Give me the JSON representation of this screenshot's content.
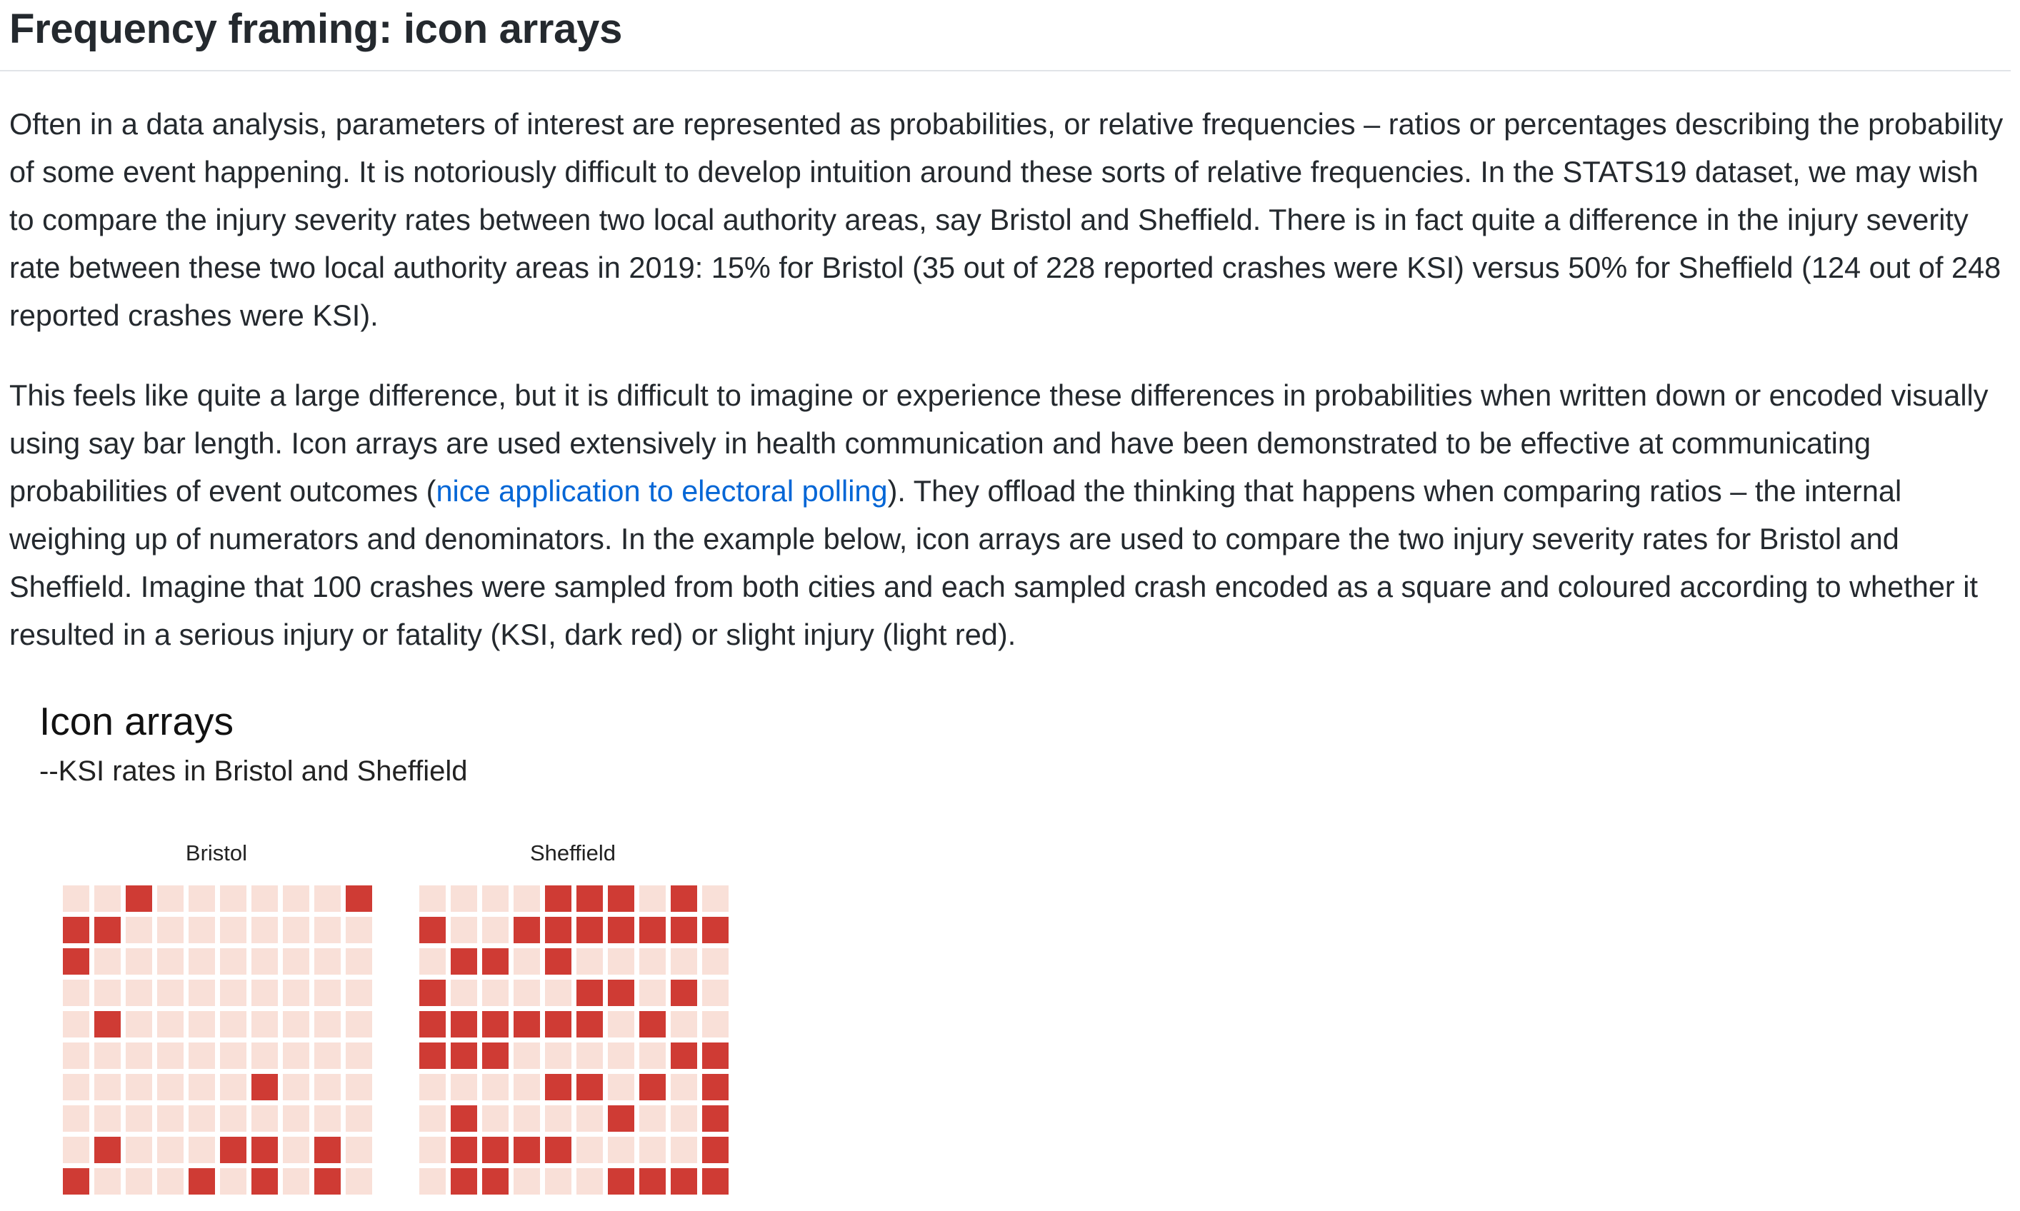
{
  "heading": "Frequency framing: icon arrays",
  "paragraph1": "Often in a data analysis, parameters of interest are represented as probabilities, or relative frequencies – ratios or percentages describing the probability of some event happening. It is notoriously difficult to develop intuition around these sorts of relative frequencies. In the STATS19 dataset, we may wish to compare the injury severity rates between two local authority areas, say Bristol and Sheffield. There is in fact quite a difference in the injury severity rate between these two local authority areas in 2019: 15% for Bristol (35 out of 228 reported crashes were KSI) versus 50% for Sheffield (124 out of 248 reported crashes were KSI).",
  "paragraph2": {
    "before_link": "This feels like quite a large difference, but it is difficult to imagine or experience these differences in probabilities when written down or encoded visually using say bar length. Icon arrays are used extensively in health communication and have been demonstrated to be effective at communicating probabilities of event outcomes (",
    "link_text": "nice application to electoral polling",
    "after_link": "). They offload the thinking that happens when comparing ratios – the internal weighing up of numerators and denominators. In the example below, icon arrays are used to compare the two injury severity rates for Bristol and Sheffield. Imagine that 100 crashes were sampled from both cities and each sampled crash encoded as a square and coloured according to whether it resulted in a serious injury or fatality (KSI, dark red) or slight injury (light red)."
  },
  "figure": {
    "title": "Icon arrays",
    "subtitle": "--KSI rates in Bristol and Sheffield"
  },
  "colors": {
    "ksi": "#cf3b34",
    "slight": "#f9e0d8",
    "link": "#0366d6"
  },
  "chart_data": {
    "type": "icon-array",
    "panels": [
      {
        "label": "Bristol",
        "grid": [
          [
            0,
            0,
            1,
            0,
            0,
            0,
            0,
            0,
            0,
            1
          ],
          [
            1,
            1,
            0,
            0,
            0,
            0,
            0,
            0,
            0,
            0
          ],
          [
            1,
            0,
            0,
            0,
            0,
            0,
            0,
            0,
            0,
            0
          ],
          [
            0,
            0,
            0,
            0,
            0,
            0,
            0,
            0,
            0,
            0
          ],
          [
            0,
            1,
            0,
            0,
            0,
            0,
            0,
            0,
            0,
            0
          ],
          [
            0,
            0,
            0,
            0,
            0,
            0,
            0,
            0,
            0,
            0
          ],
          [
            0,
            0,
            0,
            0,
            0,
            0,
            1,
            0,
            0,
            0
          ],
          [
            0,
            0,
            0,
            0,
            0,
            0,
            0,
            0,
            0,
            0
          ],
          [
            0,
            1,
            0,
            0,
            0,
            1,
            1,
            0,
            1,
            0
          ],
          [
            1,
            0,
            0,
            0,
            1,
            0,
            1,
            0,
            1,
            0
          ]
        ]
      },
      {
        "label": "Sheffield",
        "grid": [
          [
            0,
            0,
            0,
            0,
            1,
            1,
            1,
            0,
            1,
            0
          ],
          [
            1,
            0,
            0,
            1,
            1,
            1,
            1,
            1,
            1,
            1
          ],
          [
            0,
            1,
            1,
            0,
            1,
            0,
            0,
            0,
            0,
            0
          ],
          [
            1,
            0,
            0,
            0,
            0,
            1,
            1,
            0,
            1,
            0
          ],
          [
            1,
            1,
            1,
            1,
            1,
            1,
            0,
            1,
            0,
            0
          ],
          [
            1,
            1,
            1,
            0,
            0,
            0,
            0,
            0,
            1,
            1
          ],
          [
            0,
            0,
            0,
            0,
            1,
            1,
            0,
            1,
            0,
            1
          ],
          [
            0,
            1,
            0,
            0,
            0,
            0,
            1,
            0,
            0,
            1
          ],
          [
            0,
            1,
            1,
            1,
            1,
            0,
            0,
            0,
            0,
            1
          ],
          [
            0,
            1,
            1,
            0,
            0,
            0,
            1,
            1,
            1,
            1
          ]
        ]
      }
    ]
  }
}
